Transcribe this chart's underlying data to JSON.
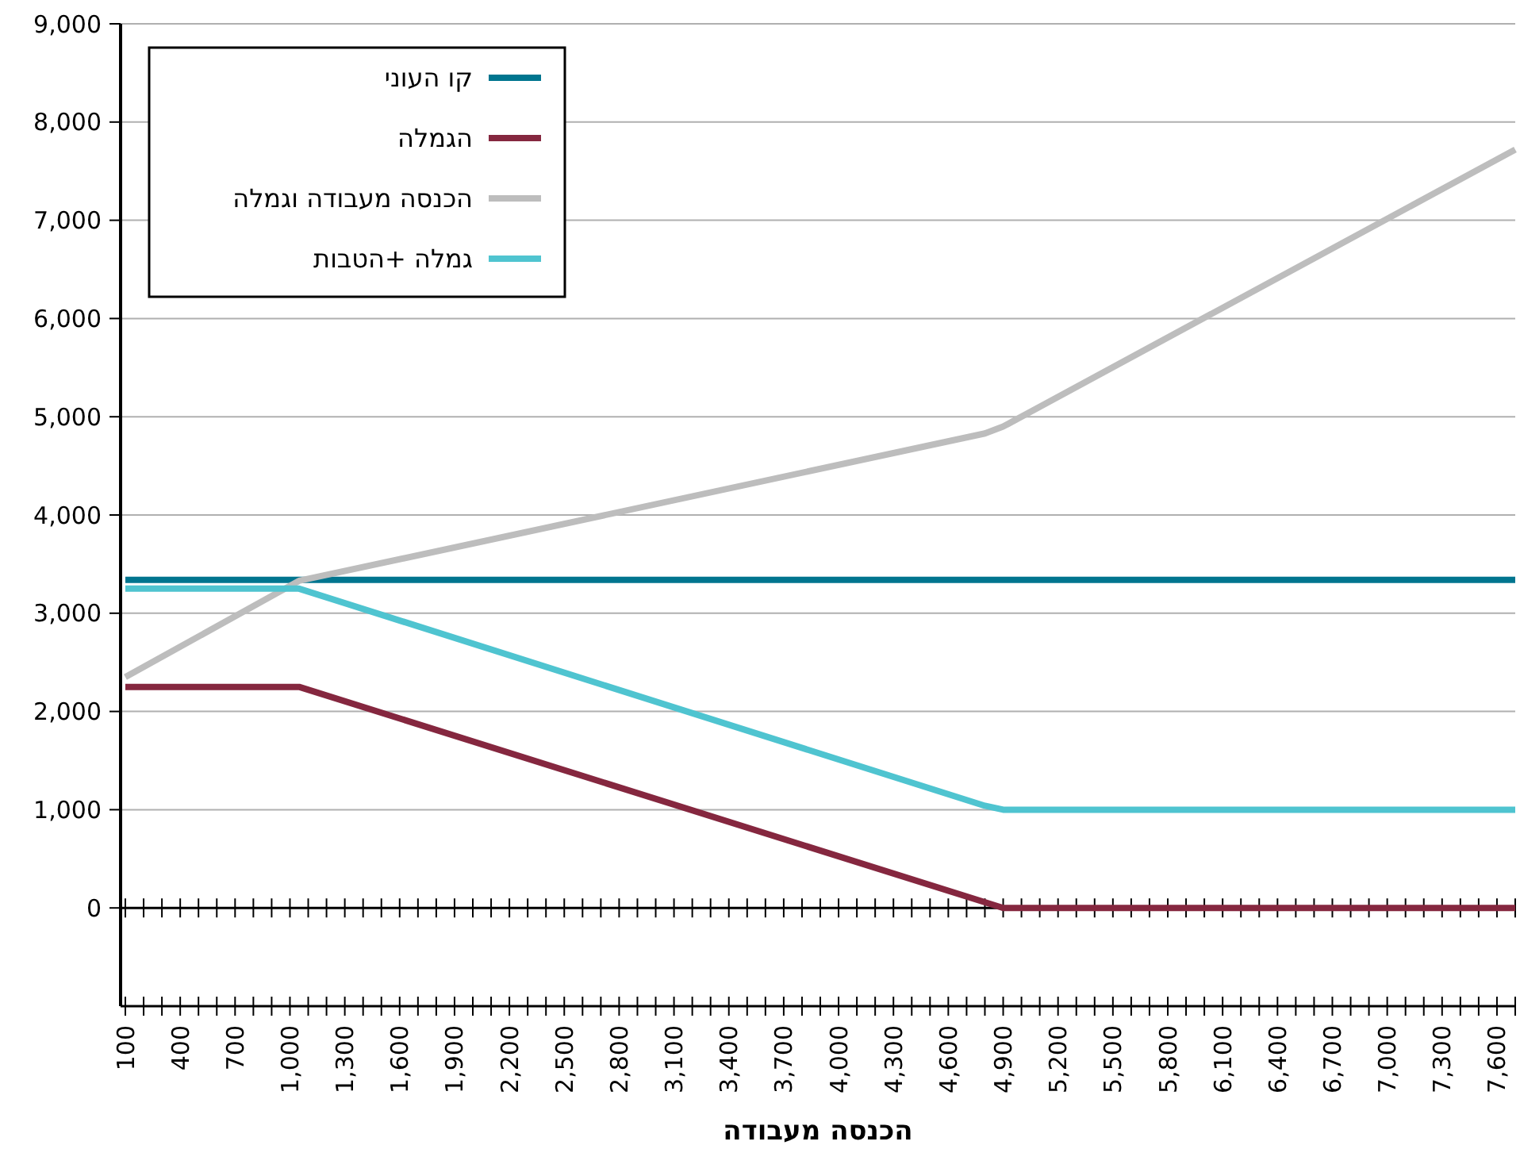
{
  "chart_data": {
    "type": "line",
    "xlabel": "הכנסה מעבודה",
    "xlim": [
      100,
      7700
    ],
    "xticks": [
      100,
      {
        "value": 200,
        "label": null
      },
      {
        "value": 300,
        "label": null
      },
      400,
      {
        "value": 500,
        "label": null
      },
      {
        "value": 600,
        "label": null
      },
      700,
      {
        "value": 800,
        "label": null
      },
      {
        "value": 900,
        "label": null
      },
      {
        "value": 1000,
        "label": "1,000"
      },
      {
        "value": 1100,
        "label": null
      },
      {
        "value": 1200,
        "label": null
      },
      {
        "value": 1300,
        "label": "1,300"
      },
      {
        "value": 1400,
        "label": null
      },
      {
        "value": 1500,
        "label": null
      },
      {
        "value": 1600,
        "label": "1,600"
      },
      {
        "value": 1700,
        "label": null
      },
      {
        "value": 1800,
        "label": null
      },
      {
        "value": 1900,
        "label": "1,900"
      },
      {
        "value": 2000,
        "label": null
      },
      {
        "value": 2100,
        "label": null
      },
      {
        "value": 2200,
        "label": "2,200"
      },
      {
        "value": 2300,
        "label": null
      },
      {
        "value": 2400,
        "label": null
      },
      {
        "value": 2500,
        "label": "2,500"
      },
      {
        "value": 2600,
        "label": null
      },
      {
        "value": 2700,
        "label": null
      },
      {
        "value": 2800,
        "label": "2,800"
      },
      {
        "value": 2900,
        "label": null
      },
      {
        "value": 3000,
        "label": null
      },
      {
        "value": 3100,
        "label": "3,100"
      },
      {
        "value": 3200,
        "label": null
      },
      {
        "value": 3300,
        "label": null
      },
      {
        "value": 3400,
        "label": "3,400"
      },
      {
        "value": 3500,
        "label": null
      },
      {
        "value": 3600,
        "label": null
      },
      {
        "value": 3700,
        "label": "3,700"
      },
      {
        "value": 3800,
        "label": null
      },
      {
        "value": 3900,
        "label": null
      },
      {
        "value": 4000,
        "label": "4,000"
      },
      {
        "value": 4100,
        "label": null
      },
      {
        "value": 4200,
        "label": null
      },
      {
        "value": 4300,
        "label": "4,300"
      },
      {
        "value": 4400,
        "label": null
      },
      {
        "value": 4500,
        "label": null
      },
      {
        "value": 4600,
        "label": "4,600"
      },
      {
        "value": 4700,
        "label": null
      },
      {
        "value": 4800,
        "label": null
      },
      {
        "value": 4900,
        "label": "4,900"
      },
      {
        "value": 5000,
        "label": null
      },
      {
        "value": 5100,
        "label": null
      },
      {
        "value": 5200,
        "label": "5,200"
      },
      {
        "value": 5300,
        "label": null
      },
      {
        "value": 5400,
        "label": null
      },
      {
        "value": 5500,
        "label": "5,500"
      },
      {
        "value": 5600,
        "label": null
      },
      {
        "value": 5700,
        "label": null
      },
      {
        "value": 5800,
        "label": "5,800"
      },
      {
        "value": 5900,
        "label": null
      },
      {
        "value": 6000,
        "label": null
      },
      {
        "value": 6100,
        "label": "6,100"
      },
      {
        "value": 6200,
        "label": null
      },
      {
        "value": 6300,
        "label": null
      },
      {
        "value": 6400,
        "label": "6,400"
      },
      {
        "value": 6500,
        "label": null
      },
      {
        "value": 6600,
        "label": null
      },
      {
        "value": 6700,
        "label": "6,700"
      },
      {
        "value": 6800,
        "label": null
      },
      {
        "value": 6900,
        "label": null
      },
      {
        "value": 7000,
        "label": "7,000"
      },
      {
        "value": 7100,
        "label": null
      },
      {
        "value": 7200,
        "label": null
      },
      {
        "value": 7300,
        "label": "7,300"
      },
      {
        "value": 7400,
        "label": null
      },
      {
        "value": 7500,
        "label": null
      },
      {
        "value": 7600,
        "label": "7,600"
      },
      {
        "value": 7700,
        "label": null
      }
    ],
    "ylim": [
      -1000,
      9000
    ],
    "yticks": [
      0,
      {
        "value": 1000,
        "label": "1,000"
      },
      {
        "value": 2000,
        "label": "2,000"
      },
      {
        "value": 3000,
        "label": "3,000"
      },
      {
        "value": 4000,
        "label": "4,000"
      },
      {
        "value": 5000,
        "label": "5,000"
      },
      {
        "value": 6000,
        "label": "6,000"
      },
      {
        "value": 7000,
        "label": "7,000"
      },
      {
        "value": 8000,
        "label": "8,000"
      },
      {
        "value": 9000,
        "label": "9,000"
      }
    ],
    "grid": "y",
    "legend": "top left",
    "marker": "none",
    "line_style": "solid",
    "series": [
      {
        "name": "קו העוני",
        "color": "#00758f",
        "x": [
          100,
          7700
        ],
        "values": [
          3340,
          3340
        ]
      },
      {
        "name": "הגמלה",
        "color": "#85273f",
        "x": [
          100,
          1050,
          4900,
          7700
        ],
        "values": [
          2250,
          2250,
          0,
          0
        ]
      },
      {
        "name": "הכנסה מעבודה וגמלה",
        "color": "#bdbdbd",
        "x": [
          100,
          1050,
          4800,
          4900,
          7700
        ],
        "values": [
          2350,
          3330,
          4830,
          4900,
          7720
        ]
      },
      {
        "name": "גמלה +הטבות",
        "color": "#4fc4d0",
        "x": [
          100,
          1050,
          4800,
          4900,
          7700
        ],
        "values": [
          3250,
          3250,
          1040,
          1000,
          1000
        ]
      }
    ]
  }
}
